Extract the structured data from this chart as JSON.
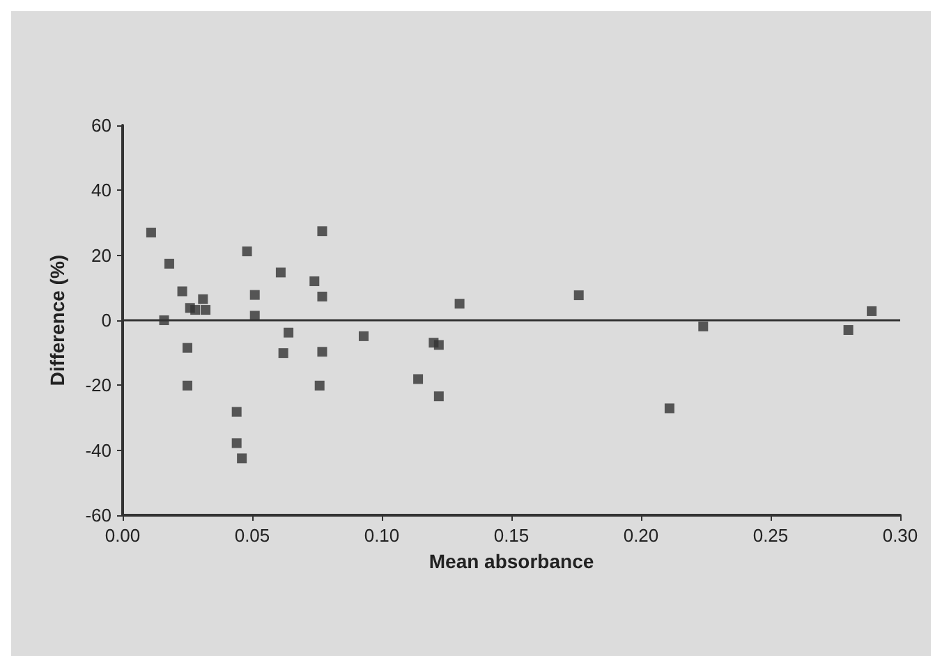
{
  "chart_data": {
    "type": "scatter",
    "xlabel": "Mean absorbance",
    "ylabel": "Difference (%)",
    "x": [
      0.011,
      0.018,
      0.023,
      0.016,
      0.025,
      0.025,
      0.026,
      0.028,
      0.032,
      0.031,
      0.044,
      0.044,
      0.046,
      0.048,
      0.051,
      0.051,
      0.061,
      0.064,
      0.062,
      0.074,
      0.077,
      0.077,
      0.077,
      0.076,
      0.093,
      0.13,
      0.12,
      0.122,
      0.114,
      0.122,
      0.176,
      0.224,
      0.211,
      0.28,
      0.289
    ],
    "series": [
      {
        "color": "#333333",
        "values": [
          27,
          17.4,
          8.9,
          0,
          -8.5,
          -20.1,
          3.8,
          3.2,
          3.2,
          6.5,
          -28.2,
          -37.8,
          -42.5,
          21.2,
          7.8,
          1.4,
          14.7,
          -3.8,
          -10.1,
          12.0,
          27.4,
          7.3,
          -9.7,
          -20.1,
          -4.9,
          5.1,
          -6.9,
          -7.6,
          -18.1,
          -23.4,
          7.7,
          -1.9,
          -27.1,
          -3.0,
          2.8
        ]
      }
    ],
    "xlim": [
      0,
      0.3
    ],
    "ylim": [
      -60,
      60
    ],
    "xticks": [
      {
        "value": 0,
        "label": "0.00"
      },
      {
        "value": 0.05,
        "label": "0.05"
      },
      {
        "value": 0.1,
        "label": "0.10"
      },
      {
        "value": 0.15,
        "label": "0.15"
      },
      {
        "value": 0.2,
        "label": "0.20"
      },
      {
        "value": 0.25,
        "label": "0.25"
      },
      {
        "value": 0.3,
        "label": "0.30"
      }
    ],
    "yticks": [
      -60,
      -40,
      -20,
      0,
      20,
      40,
      60
    ],
    "ref_lines": [
      {
        "axis": "y",
        "value": 0,
        "color": "#333333"
      }
    ],
    "marker": "square",
    "grid": false
  }
}
